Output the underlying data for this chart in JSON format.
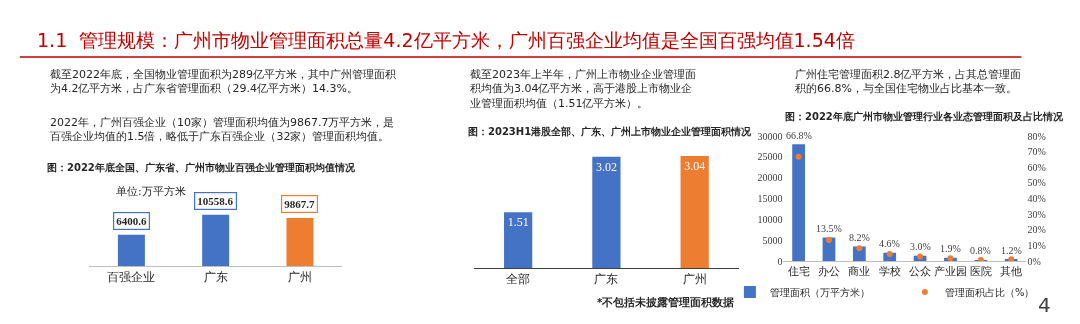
{
  "chart_data": [
    {
      "type": "other",
      "title": "1.1  管理规模：广州市物业管理面积总量4.2亿平方米，广州百强企业均值是全国百强均值1.54倍",
      "annotations": [
        "4"
      ]
    },
    {
      "type": "bar",
      "title": "图：2022年底全国、广东省、广州市物业百强企业管理面积均值情况",
      "annotations": [
        "截至2022年底，全国物业管理面积为289亿平方米，其中广州管理面积为4.2亿平方米，占广东省管理面积（29.4亿平方米）14.3%。",
        "2022年，广州百强企业（10家）管理面积均值为9867.7万平方米，是百强企业均值的1.5倍，略低于广东百强企业（32家）管理面积均值。",
        "单位:万平方米"
      ],
      "categories": [
        "百强企业",
        "广东",
        "广州"
      ],
      "values": [
        6400.6,
        10558.6,
        9867.7
      ],
      "colors": [
        "#4472c4",
        "#4472c4",
        "#ed7d31"
      ],
      "data_labels": true,
      "tick_labels": "x"
    },
    {
      "type": "bar",
      "title": "图：2023H1港股全部、广东、广州上市物业企业管理面积情况",
      "annotations": [
        "截至2023年上半年，广州上市物业企业管理面积均值为3.04亿平方米，高于港股上市物业企业管理面积均值（1.51亿平方米）。",
        "*不包括未披露管理面积数据"
      ],
      "categories": [
        "全部",
        "广东",
        "广州"
      ],
      "values": [
        1.51,
        3.02,
        3.04
      ],
      "colors": [
        "#4472c4",
        "#4472c4",
        "#ed7d31"
      ],
      "data_labels": true,
      "tick_labels": "x"
    },
    {
      "type": "bar",
      "title": "图：2022年底广州市物业管理行业各业态管理面积及占比情况",
      "annotations": [
        "广州住宅管理面积2.8亿平方米，占其总管理面积的66.8%，与全国住宅物业占比基本一致。"
      ],
      "categories": [
        "住宅",
        "办公",
        "商业",
        "学校",
        "公众",
        "产业园",
        "医院",
        "其他"
      ],
      "series": [
        {
          "name": "管理面积（万平方米）",
          "type": "bar",
          "color": "#4472c4",
          "values": [
            28000,
            5700,
            3500,
            2000,
            1300,
            800,
            300,
            500
          ]
        },
        {
          "name": "管理面积占比（%）",
          "type": "scatter",
          "axis": "y2",
          "color": "#ed7d31",
          "values": [
            66.8,
            13.5,
            8.2,
            4.6,
            3.0,
            1.9,
            0.8,
            1.2
          ],
          "value_labels": [
            "66.8%",
            "13.5%",
            "8.2%",
            "4.6%",
            "3.0%",
            "1.9%",
            "0.8%",
            "1.2%"
          ]
        }
      ],
      "ylim": [
        0,
        30000
      ],
      "yticks": [
        0,
        5000,
        10000,
        15000,
        20000,
        25000,
        30000
      ],
      "y2lim": [
        0,
        80
      ],
      "y2ticks": [
        {
          "value": 0,
          "label": "0%"
        },
        {
          "value": 10,
          "label": "10%"
        },
        {
          "value": 20,
          "label": "20%"
        },
        {
          "value": 30,
          "label": "30%"
        },
        {
          "value": 40,
          "label": "40%"
        },
        {
          "value": 50,
          "label": "50%"
        },
        {
          "value": 60,
          "label": "60%"
        },
        {
          "value": 70,
          "label": "70%"
        },
        {
          "value": 80,
          "label": "80%"
        }
      ],
      "marker": "circle",
      "legend": "bottom"
    }
  ]
}
